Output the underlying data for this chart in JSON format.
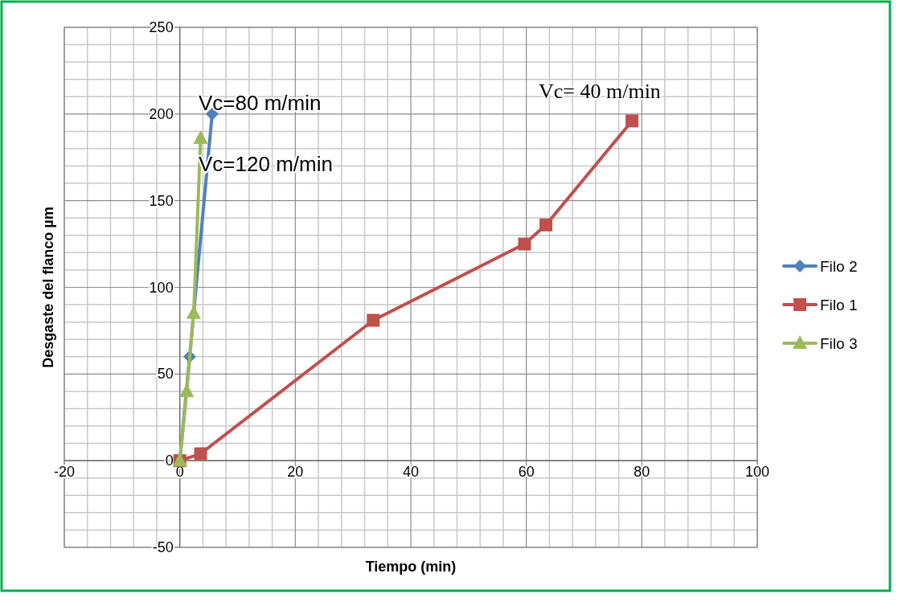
{
  "chart_data": {
    "type": "line",
    "xlabel": "Tiempo (min)",
    "ylabel": "Desgaste del flanco µm",
    "xlim": [
      -20,
      100
    ],
    "xticks": [
      -20,
      0,
      20,
      40,
      60,
      80,
      100
    ],
    "ylim": [
      -50,
      250
    ],
    "yticks": [
      -50,
      0,
      50,
      100,
      150,
      200,
      250
    ],
    "grid": true,
    "legend": "right",
    "series": [
      {
        "name": "Filo 2",
        "color": "#4f81bd",
        "marker": "diamond",
        "x": [
          0,
          1.7,
          5.6
        ],
        "values": [
          0,
          60,
          200
        ]
      },
      {
        "name": "Filo 1",
        "color": "#c0504d",
        "marker": "square",
        "x": [
          0,
          3.6,
          33.5,
          59.7,
          63.4,
          78.3
        ],
        "values": [
          0,
          4,
          81,
          125,
          136,
          196
        ]
      },
      {
        "name": "Filo 3",
        "color": "#9bbb59",
        "marker": "triangle",
        "x": [
          0,
          1.2,
          2.4,
          3.6
        ],
        "values": [
          0,
          40,
          85,
          186
        ]
      }
    ],
    "annotations": [
      "Vc=80 m/min",
      "Vc=120 m/min",
      "Vc= 40 m/min"
    ]
  }
}
